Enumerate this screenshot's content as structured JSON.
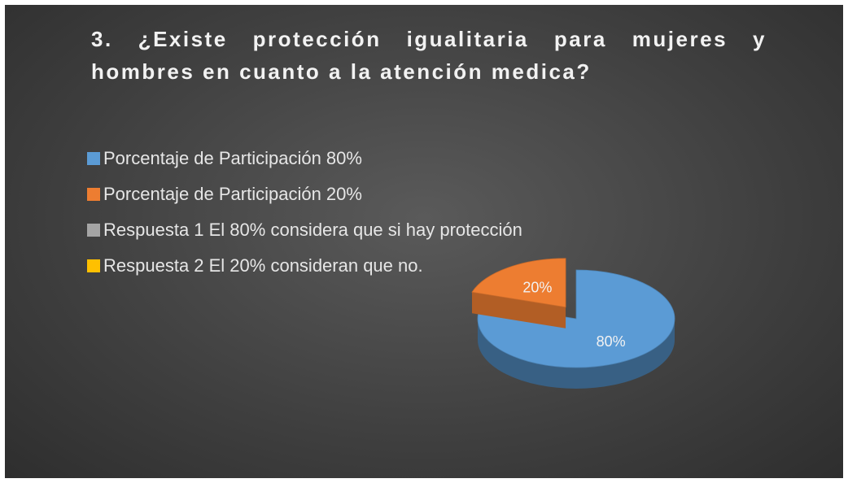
{
  "chart_data": {
    "type": "pie",
    "title": "3.    ¿Existe protección igualitaria para mujeres y hombres en cuanto a la atención medica?",
    "categories": [
      "Porcentaje de Participación 80%",
      "Porcentaje de Participación 20%",
      "Respuesta 1 El 80% considera que si hay protección",
      "Respuesta 2 El 20% consideran que no."
    ],
    "values": [
      80,
      20,
      null,
      null
    ],
    "value_labels": [
      "80%",
      "20%",
      null,
      null
    ],
    "colors": [
      "#5b9bd5",
      "#ed7d31",
      "#a5a5a5",
      "#ffc000"
    ],
    "legend": "top-left"
  }
}
